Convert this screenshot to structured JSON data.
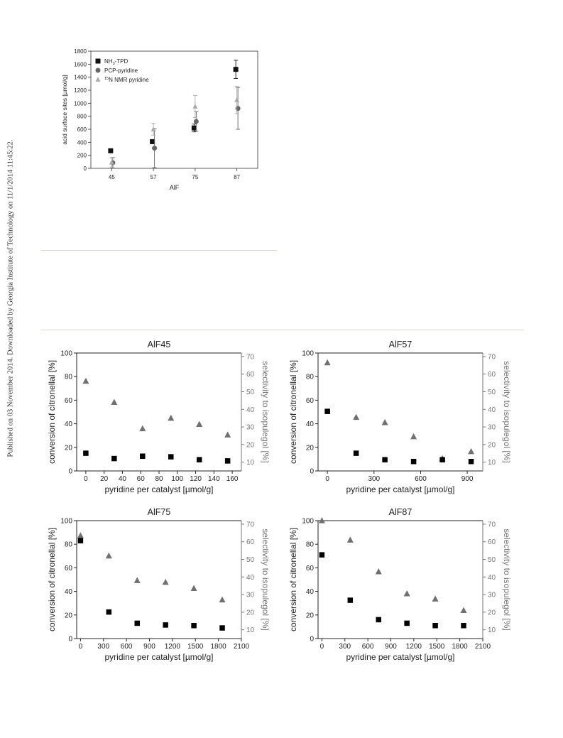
{
  "side_note": "Published on 03 November 2014. Downloaded by Georgia Institute of Technology on 11/1/2014 11:45:22.",
  "chart_data": [
    {
      "type": "scatter",
      "title": "",
      "xlabel": "AlF",
      "ylabel": "acid surface sites [µmol/g]",
      "categories": [
        "45",
        "57",
        "75",
        "87"
      ],
      "ylim": [
        0,
        1800
      ],
      "yticks": [
        "0",
        "200",
        "400",
        "600",
        "800",
        "1000",
        "1200",
        "1400",
        "1600",
        "1800"
      ],
      "legend": "top-left",
      "series": [
        {
          "name": "NH3-TPD",
          "name_main": "NH",
          "name_sub": "3",
          "name_rest": "-TPD",
          "marker": "square",
          "color": "#111111",
          "values": [
            270,
            410,
            620,
            1520
          ],
          "err": [
            0,
            30,
            60,
            140
          ]
        },
        {
          "name": "PCP-pyridine",
          "marker": "circle",
          "color": "#666666",
          "values": [
            85,
            310,
            720,
            920
          ],
          "err": [
            80,
            300,
            150,
            320
          ]
        },
        {
          "name": "15N NMR pyridine",
          "name_sup": "15",
          "name_main": "N NMR pyridine",
          "marker": "triangle",
          "color": "#aaaaaa",
          "values": [
            90,
            600,
            950,
            1050
          ],
          "err": [
            70,
            90,
            170,
            210
          ]
        }
      ]
    },
    {
      "type": "scatter",
      "title": "AlF45",
      "xlabel": "pyridine per catalyst [µmol/g]",
      "ylabel": "conversion of citronellal [%]",
      "y2label": "selectivity to isopulegol [%]",
      "xlim": [
        -10,
        170
      ],
      "xticks": [
        0,
        20,
        40,
        60,
        80,
        100,
        120,
        140,
        160
      ],
      "ylim": [
        0,
        100
      ],
      "yticks": [
        0,
        20,
        40,
        60,
        80,
        100
      ],
      "y2lim": [
        5,
        72
      ],
      "y2ticks": [
        10,
        20,
        30,
        40,
        50,
        60,
        70
      ],
      "conversion": {
        "x": [
          0,
          31,
          62,
          93,
          124,
          155
        ],
        "y": [
          15,
          10.5,
          12.5,
          12,
          9.5,
          8.5
        ]
      },
      "selectivity": {
        "x": [
          0,
          31,
          62,
          93,
          124,
          155
        ],
        "y": [
          56,
          44,
          29,
          35,
          31.5,
          25.5
        ]
      }
    },
    {
      "type": "scatter",
      "title": "AlF57",
      "xlabel": "pyridine per catalyst [µmol/g]",
      "ylabel": "conversion of citronellal [%]",
      "y2label": "selectivity to isopulegol [%]",
      "xlim": [
        -60,
        1000
      ],
      "xticks": [
        0,
        300,
        600,
        900
      ],
      "ylim": [
        0,
        100
      ],
      "yticks": [
        0,
        20,
        40,
        60,
        80,
        100
      ],
      "y2lim": [
        5,
        72
      ],
      "y2ticks": [
        10,
        20,
        30,
        40,
        50,
        60,
        70
      ],
      "conversion": {
        "x": [
          0,
          185,
          370,
          555,
          740,
          925
        ],
        "y": [
          50.5,
          15,
          9.5,
          8,
          9.5,
          8
        ]
      },
      "selectivity": {
        "x": [
          0,
          185,
          370,
          555,
          740,
          925
        ],
        "y": [
          66.5,
          35.5,
          32.5,
          24.5,
          12,
          16
        ]
      }
    },
    {
      "type": "scatter",
      "title": "AlF75",
      "xlabel": "pyridine per catalyst [µmol/g]",
      "ylabel": "conversion of citronellal [%]",
      "y2label": "selectivity to isopulegol [%]",
      "xlim": [
        -50,
        2100
      ],
      "xticks": [
        0,
        300,
        600,
        900,
        1200,
        1500,
        1800,
        2100
      ],
      "ylim": [
        0,
        100
      ],
      "yticks": [
        0,
        20,
        40,
        60,
        80,
        100
      ],
      "y2lim": [
        5,
        72
      ],
      "y2ticks": [
        10,
        20,
        30,
        40,
        50,
        60,
        70
      ],
      "conversion": {
        "x": [
          0,
          370,
          740,
          1110,
          1480,
          1850
        ],
        "y": [
          83,
          22.5,
          13,
          11.5,
          11,
          9
        ]
      },
      "selectivity": {
        "x": [
          0,
          370,
          740,
          1110,
          1480,
          1850
        ],
        "y": [
          63.5,
          52,
          38,
          37,
          33.5,
          27
        ]
      }
    },
    {
      "type": "scatter",
      "title": "AlF87",
      "xlabel": "pyridine per catalyst [µmol/g]",
      "ylabel": "conversion of citronellal [%]",
      "y2label": "selectivity to isopulegol [%]",
      "xlim": [
        -50,
        2100
      ],
      "xticks": [
        0,
        300,
        600,
        900,
        1200,
        1500,
        1800,
        2100
      ],
      "ylim": [
        0,
        100
      ],
      "yticks": [
        0,
        20,
        40,
        60,
        80,
        100
      ],
      "y2lim": [
        5,
        72
      ],
      "y2ticks": [
        10,
        20,
        30,
        40,
        50,
        60,
        70
      ],
      "conversion": {
        "x": [
          0,
          370,
          740,
          1110,
          1480,
          1850
        ],
        "y": [
          71,
          32.5,
          16,
          13,
          11,
          11
        ]
      },
      "selectivity": {
        "x": [
          0,
          370,
          740,
          1110,
          1480,
          1850
        ],
        "y": [
          72,
          61,
          43,
          30.5,
          27.5,
          21
        ]
      }
    }
  ]
}
